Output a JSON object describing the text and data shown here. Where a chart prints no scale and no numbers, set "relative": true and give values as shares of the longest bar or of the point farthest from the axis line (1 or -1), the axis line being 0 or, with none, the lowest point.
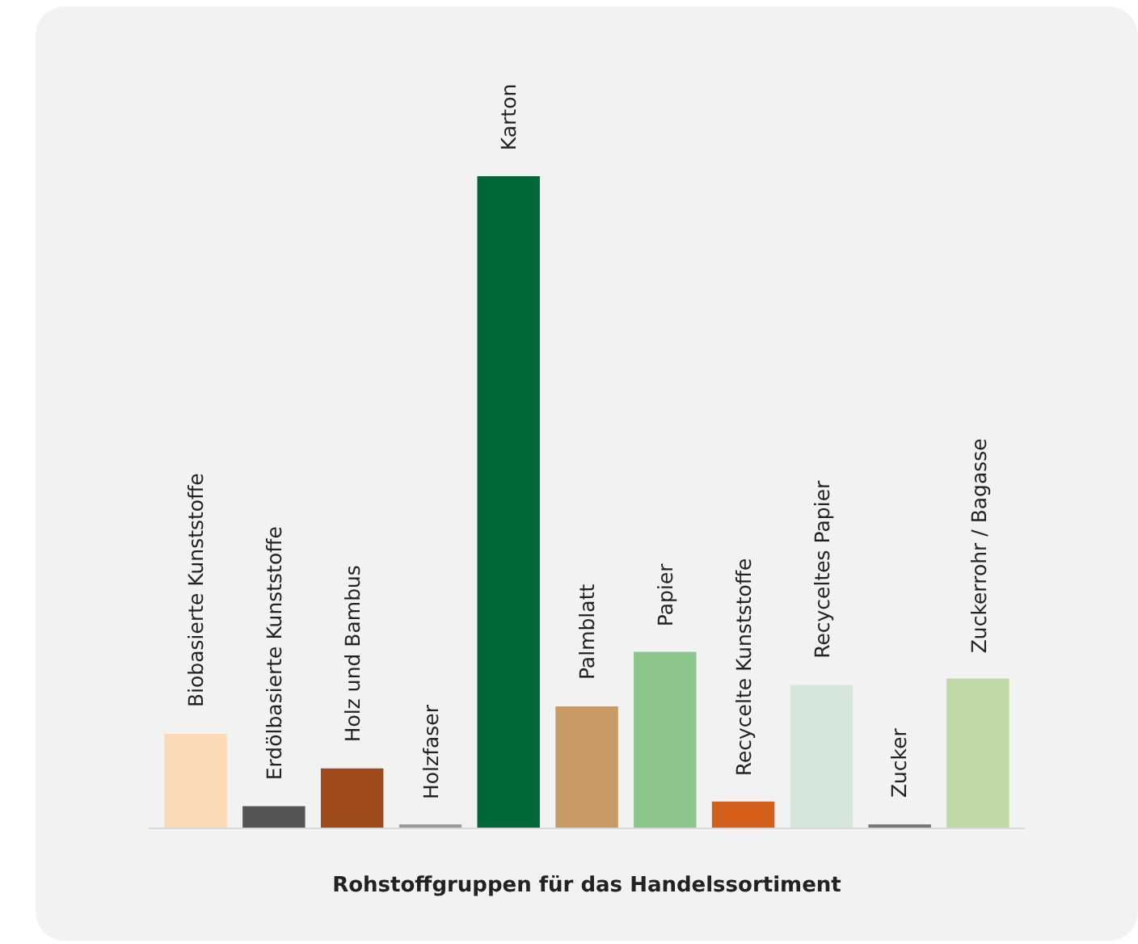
{
  "chart_data": {
    "type": "bar",
    "relative": true,
    "xlabel": "Rohstoffgruppen für das Handelssortiment",
    "categories": [
      "Biobasierte Kunststoffe",
      "Erdölbasierte Kunststoffe",
      "Holz und Bambus",
      "Holzfaser",
      "Karton",
      "Palmblatt",
      "Papier",
      "Recycelte Kunststoffe",
      "Recyceltes Papier",
      "Zucker",
      "Zuckerrohr / Bagasse"
    ],
    "values": [
      0.144,
      0.033,
      0.091,
      0.003,
      1,
      0.186,
      0.27,
      0.04,
      0.219,
      0.005,
      0.229
    ],
    "colors": [
      "#fcdab6",
      "#555555",
      "#9e4a1a",
      "#9a9a9a",
      "#006837",
      "#c89b66",
      "#8dc68a",
      "#d45f1a",
      "#d4e6d9",
      "#777777",
      "#bfd9a5"
    ],
    "legend": false
  }
}
